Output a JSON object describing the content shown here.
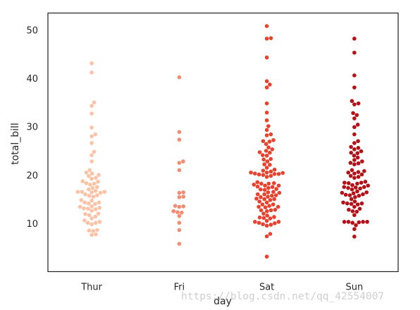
{
  "chart_data": {
    "type": "scatter",
    "kind": "swarm",
    "xlabel": "day",
    "ylabel": "total_bill",
    "categories": [
      "Thur",
      "Fri",
      "Sat",
      "Sun"
    ],
    "y_ticks": [
      10,
      20,
      30,
      40,
      50
    ],
    "ylim": [
      0,
      53.5
    ],
    "grid": false,
    "palette": [
      "#fcc2a5",
      "#f58b6f",
      "#e8412d",
      "#b31117"
    ],
    "series": [
      {
        "category": "Thur",
        "values": [
          7.6,
          7.7,
          8.4,
          8.5,
          8.6,
          9.8,
          10.1,
          10.1,
          10.3,
          10.6,
          11.0,
          11.4,
          11.7,
          11.9,
          12.0,
          12.6,
          12.9,
          13.0,
          13.1,
          13.2,
          13.4,
          13.5,
          14.0,
          14.1,
          14.3,
          14.3,
          14.7,
          14.8,
          15.5,
          15.7,
          15.8,
          16.0,
          16.3,
          16.4,
          16.5,
          16.5,
          16.5,
          16.7,
          17.0,
          17.3,
          17.5,
          18.0,
          18.2,
          18.3,
          18.6,
          18.7,
          19.2,
          19.4,
          19.8,
          20.0,
          20.3,
          20.5,
          21.0,
          22.8,
          24.1,
          24.8,
          26.6,
          28.0,
          28.4,
          29.8,
          32.7,
          34.3,
          35.0,
          41.2,
          43.1
        ]
      },
      {
        "category": "Fri",
        "values": [
          5.75,
          8.6,
          10.1,
          11.5,
          12.2,
          12.3,
          12.5,
          13.4,
          13.5,
          13.6,
          15.4,
          15.5,
          16.3,
          16.4,
          21.0,
          22.5,
          22.8,
          27.3,
          28.9,
          40.2
        ]
      },
      {
        "category": "Sat",
        "values": [
          3.1,
          7.3,
          7.8,
          9.5,
          9.7,
          9.8,
          10.0,
          10.1,
          10.3,
          10.3,
          10.5,
          11.1,
          11.0,
          11.2,
          11.3,
          11.6,
          12.0,
          12.5,
          12.7,
          12.7,
          12.8,
          13.3,
          13.4,
          13.4,
          13.6,
          13.9,
          13.9,
          14.3,
          14.5,
          14.8,
          15.0,
          15.0,
          15.1,
          15.4,
          15.5,
          15.7,
          15.8,
          16.0,
          16.0,
          16.3,
          16.4,
          16.5,
          16.9,
          17.0,
          17.1,
          17.3,
          17.5,
          17.6,
          17.8,
          17.8,
          18.0,
          18.2,
          18.2,
          18.3,
          18.5,
          19.6,
          19.8,
          20.0,
          20.1,
          20.2,
          20.2,
          20.3,
          20.4,
          20.5,
          20.5,
          20.7,
          20.9,
          21.1,
          21.5,
          22.1,
          22.2,
          22.8,
          23.2,
          23.3,
          24.0,
          24.1,
          24.6,
          24.7,
          25.0,
          25.3,
          25.7,
          26.4,
          26.9,
          27.0,
          27.2,
          28.2,
          28.4,
          29.3,
          30.1,
          31.3,
          32.9,
          34.8,
          38.1,
          38.7,
          39.4,
          44.3,
          48.2,
          48.3,
          50.8
        ]
      },
      {
        "category": "Sun",
        "values": [
          7.25,
          8.8,
          9.6,
          10.1,
          10.2,
          10.3,
          10.3,
          10.3,
          10.3,
          11.7,
          12.4,
          12.5,
          12.8,
          13.0,
          13.4,
          13.9,
          14.0,
          14.1,
          14.1,
          14.3,
          14.5,
          15.0,
          15.4,
          15.7,
          15.8,
          15.9,
          16.0,
          16.2,
          16.3,
          16.4,
          16.6,
          17.0,
          17.2,
          17.3,
          17.4,
          17.5,
          17.5,
          17.8,
          17.9,
          18.2,
          18.3,
          18.4,
          18.4,
          18.6,
          19.4,
          19.6,
          19.8,
          20.1,
          20.3,
          20.5,
          20.6,
          20.8,
          21.0,
          22.2,
          22.4,
          22.5,
          22.8,
          23.1,
          23.6,
          24.0,
          24.5,
          24.6,
          24.9,
          25.3,
          25.6,
          25.8,
          26.6,
          27.0,
          28.4,
          29.9,
          30.4,
          31.7,
          32.4,
          32.8,
          34.6,
          34.8,
          35.3,
          38.1,
          40.6,
          45.3,
          48.2
        ]
      }
    ]
  },
  "watermark": "https://blog.csdn.net/qq_42554007"
}
